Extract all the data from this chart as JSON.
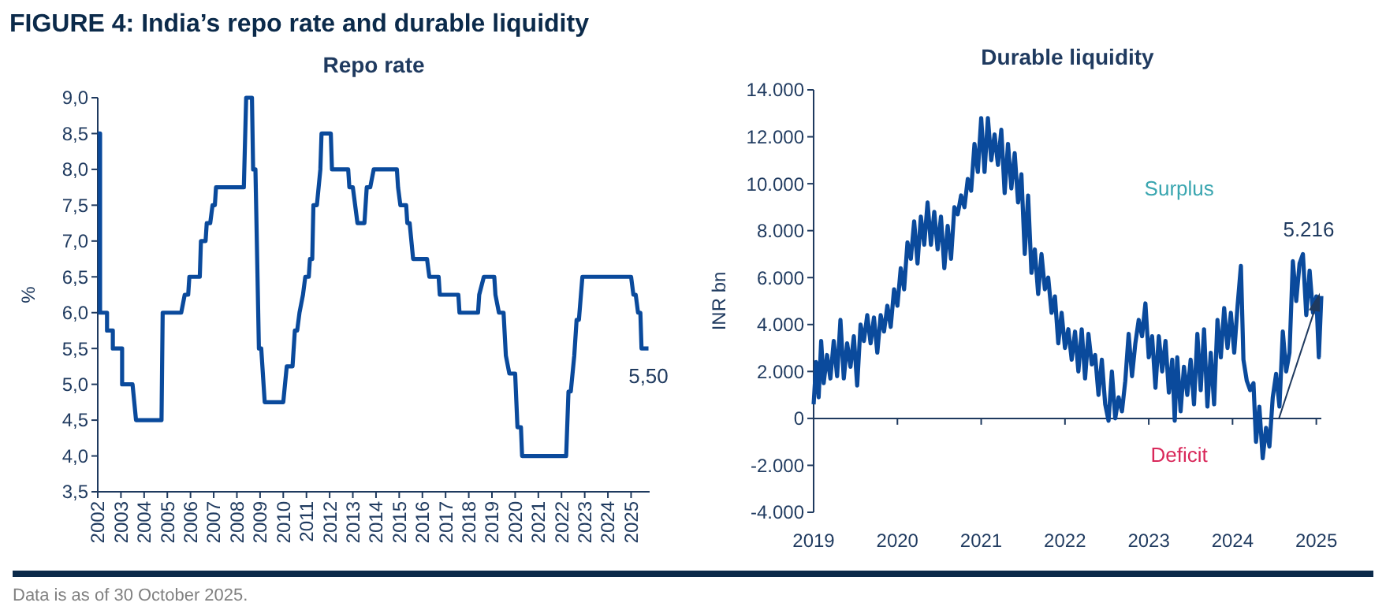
{
  "chart_data": [
    {
      "type": "line",
      "title": "Repo rate",
      "ylabel": "%",
      "annotations": [
        "FIGURE 4: India’s repo rate and durable liquidity",
        "Data is as of 30 October 2025.",
        {
          "text": "5,50",
          "x": 2025.75,
          "y": 5.5
        }
      ],
      "xlim": [
        2002,
        2025.8
      ],
      "xticks": [
        2002,
        2003,
        2004,
        2005,
        2006,
        2007,
        2008,
        2009,
        2010,
        2011,
        2012,
        2013,
        2014,
        2015,
        2016,
        2017,
        2018,
        2019,
        2020,
        2021,
        2022,
        2023,
        2024,
        2025
      ],
      "ylim": [
        3.5,
        9
      ],
      "yticks": [
        {
          "value": 3.5,
          "label": "3,5"
        },
        {
          "value": 4,
          "label": "4,0"
        },
        {
          "value": 4.5,
          "label": "4,5"
        },
        {
          "value": 5,
          "label": "5,0"
        },
        {
          "value": 5.5,
          "label": "5,5"
        },
        {
          "value": 6,
          "label": "6,0"
        },
        {
          "value": 6.5,
          "label": "6,5"
        },
        {
          "value": 7,
          "label": "7,0"
        },
        {
          "value": 7.5,
          "label": "7,5"
        },
        {
          "value": 8,
          "label": "8,0"
        },
        {
          "value": 8.5,
          "label": "8,5"
        },
        {
          "value": 9,
          "label": "9,0"
        }
      ],
      "series": [
        {
          "color": "#0a4a9c",
          "x": [
            2002.0,
            2002.1,
            2002.1,
            2002.4,
            2002.4,
            2002.65,
            2002.65,
            2003.05,
            2003.05,
            2003.5,
            2003.65,
            2004.75,
            2004.8,
            2005.6,
            2005.75,
            2005.9,
            2005.95,
            2006.4,
            2006.45,
            2006.65,
            2006.7,
            2006.85,
            2006.95,
            2007.05,
            2007.1,
            2008.3,
            2008.4,
            2008.65,
            2008.7,
            2008.8,
            2008.95,
            2009.05,
            2009.2,
            2010.0,
            2010.15,
            2010.4,
            2010.5,
            2010.6,
            2010.7,
            2010.85,
            2010.95,
            2011.1,
            2011.15,
            2011.25,
            2011.3,
            2011.45,
            2011.6,
            2011.65,
            2012.05,
            2012.1,
            2012.8,
            2012.85,
            2013.0,
            2013.2,
            2013.5,
            2013.6,
            2013.75,
            2013.9,
            2014.9,
            2014.95,
            2015.05,
            2015.3,
            2015.35,
            2015.45,
            2015.6,
            2016.2,
            2016.3,
            2016.7,
            2016.75,
            2017.55,
            2017.6,
            2018.4,
            2018.45,
            2018.65,
            2019.1,
            2019.15,
            2019.3,
            2019.5,
            2019.6,
            2019.75,
            2020.0,
            2020.1,
            2020.25,
            2020.3,
            2022.2,
            2022.3,
            2022.4,
            2022.55,
            2022.65,
            2022.75,
            2022.9,
            2025.0,
            2025.1,
            2025.2,
            2025.3,
            2025.4,
            2025.45,
            2025.75
          ],
          "values": [
            8.5,
            8.5,
            6.0,
            6.0,
            5.75,
            5.75,
            5.5,
            5.5,
            5.0,
            5.0,
            4.5,
            4.5,
            6.0,
            6.0,
            6.25,
            6.25,
            6.5,
            6.5,
            7.0,
            7.0,
            7.25,
            7.25,
            7.5,
            7.5,
            7.75,
            7.75,
            9.0,
            9.0,
            8.0,
            8.0,
            5.5,
            5.5,
            4.75,
            4.75,
            5.25,
            5.25,
            5.75,
            5.75,
            6.0,
            6.25,
            6.5,
            6.5,
            6.75,
            6.75,
            7.5,
            7.5,
            8.0,
            8.5,
            8.5,
            8.0,
            8.0,
            7.75,
            7.75,
            7.25,
            7.25,
            7.75,
            7.75,
            8.0,
            8.0,
            7.75,
            7.5,
            7.5,
            7.25,
            7.25,
            6.75,
            6.75,
            6.5,
            6.5,
            6.25,
            6.25,
            6.0,
            6.0,
            6.25,
            6.5,
            6.5,
            6.25,
            6.0,
            6.0,
            5.4,
            5.15,
            5.15,
            4.4,
            4.4,
            4.0,
            4.0,
            4.9,
            4.9,
            5.4,
            5.9,
            5.9,
            6.5,
            6.5,
            6.25,
            6.25,
            6.0,
            6.0,
            5.5,
            5.5
          ]
        }
      ]
    },
    {
      "type": "line",
      "title": "Durable liquidity",
      "ylabel": "INR bn",
      "annotations": [
        "Surplus",
        "Deficit",
        {
          "text": "5.216",
          "x": 2025.06,
          "y": 5216
        }
      ],
      "xlim": [
        2019,
        2025.06
      ],
      "xticks": [
        2019,
        2020,
        2021,
        2022,
        2023,
        2024,
        2025
      ],
      "ylim": [
        -4000,
        14000
      ],
      "yticks": [
        {
          "value": -4000,
          "label": "-4.000"
        },
        {
          "value": -2000,
          "label": "-2.000"
        },
        0,
        {
          "value": 2000,
          "label": "2.000"
        },
        {
          "value": 4000,
          "label": "4.000"
        },
        {
          "value": 6000,
          "label": "6.000"
        },
        {
          "value": 8000,
          "label": "8.000"
        },
        {
          "value": 10000,
          "label": "10.000"
        },
        {
          "value": 12000,
          "label": "12.000"
        },
        {
          "value": 14000,
          "label": "14.000"
        }
      ],
      "series": [
        {
          "color": "#0a4a9c",
          "x": [
            2019.0,
            2019.03,
            2019.06,
            2019.09,
            2019.12,
            2019.16,
            2019.2,
            2019.24,
            2019.28,
            2019.32,
            2019.36,
            2019.4,
            2019.44,
            2019.48,
            2019.52,
            2019.56,
            2019.6,
            2019.64,
            2019.68,
            2019.72,
            2019.76,
            2019.8,
            2019.84,
            2019.88,
            2019.92,
            2019.96,
            2020.0,
            2020.04,
            2020.08,
            2020.12,
            2020.16,
            2020.2,
            2020.24,
            2020.28,
            2020.32,
            2020.36,
            2020.4,
            2020.44,
            2020.48,
            2020.52,
            2020.56,
            2020.6,
            2020.64,
            2020.68,
            2020.72,
            2020.76,
            2020.8,
            2020.84,
            2020.88,
            2020.92,
            2020.96,
            2021.0,
            2021.04,
            2021.08,
            2021.12,
            2021.16,
            2021.2,
            2021.24,
            2021.28,
            2021.32,
            2021.36,
            2021.4,
            2021.44,
            2021.48,
            2021.52,
            2021.56,
            2021.6,
            2021.64,
            2021.68,
            2021.72,
            2021.76,
            2021.8,
            2021.84,
            2021.88,
            2021.92,
            2021.96,
            2022.0,
            2022.04,
            2022.08,
            2022.12,
            2022.16,
            2022.2,
            2022.24,
            2022.28,
            2022.32,
            2022.36,
            2022.4,
            2022.44,
            2022.48,
            2022.52,
            2022.56,
            2022.6,
            2022.64,
            2022.68,
            2022.72,
            2022.76,
            2022.8,
            2022.84,
            2022.88,
            2022.92,
            2022.96,
            2023.0,
            2023.04,
            2023.08,
            2023.12,
            2023.16,
            2023.2,
            2023.24,
            2023.28,
            2023.31,
            2023.34,
            2023.38,
            2023.42,
            2023.46,
            2023.5,
            2023.54,
            2023.58,
            2023.62,
            2023.66,
            2023.7,
            2023.74,
            2023.78,
            2023.82,
            2023.86,
            2023.9,
            2023.94,
            2023.98,
            2024.02,
            2024.06,
            2024.1,
            2024.13,
            2024.17,
            2024.21,
            2024.25,
            2024.28,
            2024.32,
            2024.36,
            2024.4,
            2024.44,
            2024.48,
            2024.52,
            2024.56,
            2024.6,
            2024.64,
            2024.68,
            2024.72,
            2024.76,
            2024.8,
            2024.84,
            2024.88,
            2024.92,
            2024.96,
            2025.0,
            2025.03,
            2025.06
          ],
          "values": [
            600,
            2400,
            900,
            3300,
            1500,
            2700,
            1700,
            3300,
            1800,
            4200,
            1700,
            3200,
            2200,
            3500,
            1400,
            4000,
            3300,
            4400,
            3200,
            4300,
            2800,
            4400,
            3700,
            4800,
            3900,
            5500,
            4800,
            6400,
            5500,
            7500,
            6800,
            8400,
            6600,
            8600,
            7400,
            9200,
            7400,
            8800,
            7200,
            8600,
            6400,
            8200,
            6800,
            9000,
            8700,
            9500,
            9000,
            10200,
            9700,
            11700,
            10500,
            12800,
            10500,
            12800,
            11000,
            12100,
            10800,
            12300,
            9600,
            11700,
            9800,
            11300,
            9200,
            10400,
            7000,
            9500,
            6200,
            7200,
            5300,
            7000,
            5500,
            6000,
            4500,
            5200,
            3200,
            4500,
            3000,
            3800,
            2500,
            3700,
            2000,
            3800,
            1700,
            3600,
            2300,
            2700,
            1000,
            2500,
            600,
            -100,
            2000,
            0,
            900,
            300,
            1600,
            3600,
            1800,
            3200,
            4200,
            3500,
            4900,
            2600,
            3500,
            1300,
            3500,
            2000,
            3300,
            1100,
            2500,
            -100,
            2600,
            300,
            2200,
            1000,
            2500,
            600,
            3600,
            1200,
            3800,
            500,
            2800,
            600,
            4200,
            2600,
            4700,
            3000,
            4500,
            2800,
            4800,
            6500,
            2500,
            1600,
            1200,
            1500,
            -1000,
            500,
            -1700,
            -400,
            -1200,
            900,
            1900,
            500,
            3700,
            2000,
            2800,
            6700,
            5000,
            6600,
            7000,
            4400,
            6300,
            4500,
            5200,
            2600,
            5216
          ]
        }
      ]
    }
  ]
}
